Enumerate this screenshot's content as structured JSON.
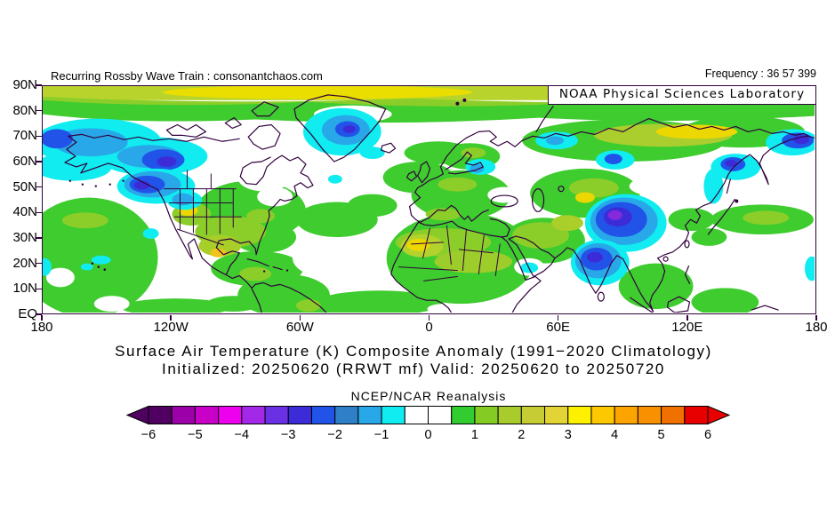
{
  "header": {
    "left": "Recurring Rossby Wave Train : consonantchaos.com",
    "right": "Frequency : 36 57 399"
  },
  "map_overlay": {
    "label": "NOAA Physical Sciences Laboratory"
  },
  "chart_data": {
    "type": "heatmap",
    "title": "Surface Air Temperature (K) Composite Anomaly (1991−2020 Climatology)",
    "subtitle": "Initialized: 20250620 (RRWT mf) Valid: 20250620 to 20250720",
    "colorbar_title": "NCEP/NCAR Reanalysis",
    "units": "K",
    "projection": "cylindrical, Northern Hemisphere 0–90N, 180W–180E",
    "lat_ticks": [
      "90N",
      "80N",
      "70N",
      "60N",
      "50N",
      "40N",
      "30N",
      "20N",
      "10N",
      "EQ"
    ],
    "lon_ticks": [
      "180",
      "120W",
      "60W",
      "0",
      "60E",
      "120E",
      "180"
    ],
    "colorbar": {
      "range": [
        -6,
        6
      ],
      "step": 0.5,
      "tick_labels": [
        "−6",
        "−5",
        "−4",
        "−3",
        "−2",
        "−1",
        "0",
        "1",
        "2",
        "3",
        "4",
        "5",
        "6"
      ],
      "cell_colors": [
        "#500060",
        "#9c00a8",
        "#c800c8",
        "#ee00ee",
        "#a428e8",
        "#6a30e4",
        "#3c2cd8",
        "#2253e8",
        "#2e7fc8",
        "#28a8e8",
        "#10ecf0",
        "#ffffff",
        "#ffffff",
        "#30cc30",
        "#84cc24",
        "#a8cc2c",
        "#c6cc34",
        "#e2d434",
        "#fdf100",
        "#fdc800",
        "#fda400",
        "#f89000",
        "#f07000",
        "#e80000"
      ]
    },
    "notable_anomalies": [
      {
        "region": "Arctic cap 80N–90N",
        "sign": "positive",
        "approx_value": 2.5
      },
      {
        "region": "Bering Sea / Alaska 55N–75N",
        "sign": "negative",
        "approx_value": -1.5
      },
      {
        "region": "Gulf of Alaska / British Columbia coast",
        "sign": "negative",
        "approx_value": -3
      },
      {
        "region": "Greenland interior",
        "sign": "negative",
        "approx_value": -2.5
      },
      {
        "region": "Great Basin, western US",
        "sign": "positive",
        "approx_value": 3
      },
      {
        "region": "Eastern North America",
        "sign": "positive",
        "approx_value": 1
      },
      {
        "region": "Baltic / NW Russia",
        "sign": "negative",
        "approx_value": -1
      },
      {
        "region": "Sahara / West Africa",
        "sign": "positive",
        "approx_value": 2.5
      },
      {
        "region": "Central Siberia 65N–75N",
        "sign": "positive",
        "approx_value": 3
      },
      {
        "region": "Tibetan Plateau / western China",
        "sign": "negative",
        "approx_value": -4.5
      },
      {
        "region": "Northern India",
        "sign": "negative",
        "approx_value": -3.5
      },
      {
        "region": "Sea of Okhotsk coast",
        "sign": "negative",
        "approx_value": -3
      },
      {
        "region": "Chukotka / Bering Strait",
        "sign": "negative",
        "approx_value": -3
      },
      {
        "region": "Most tropical oceans and land",
        "sign": "positive",
        "approx_value": 1
      }
    ]
  }
}
